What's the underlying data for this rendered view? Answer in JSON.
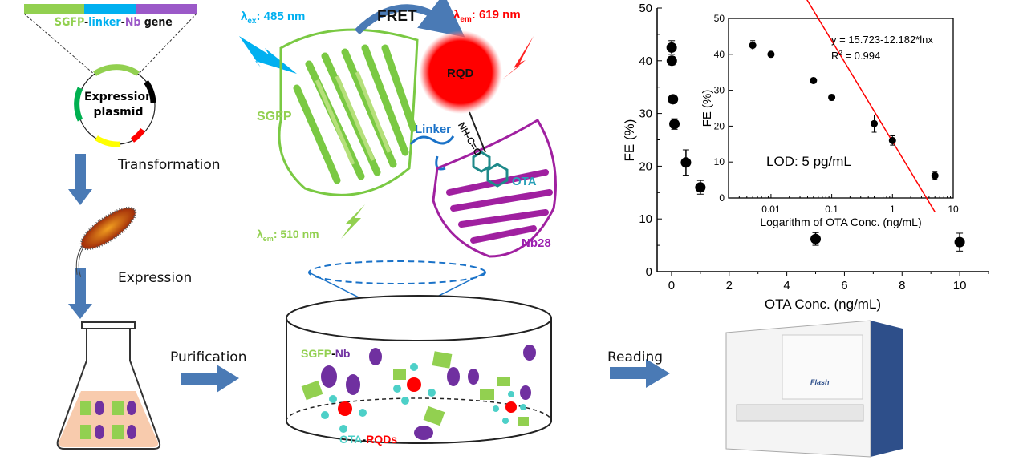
{
  "gene": {
    "part1": "SGFP",
    "sep1": "-",
    "part2": "linker",
    "sep2": "-",
    "part3": "Nb",
    "part4": " gene",
    "colors": {
      "sgfp": "#92d050",
      "linker": "#00b0f0",
      "nb": "#9b59c8"
    }
  },
  "plasmid": {
    "line1": "Expression",
    "line2": "plasmid"
  },
  "steps": {
    "transformation": "Transformation",
    "expression": "Expression",
    "purification": "Purification",
    "reading": "Reading"
  },
  "fret": {
    "label": "FRET",
    "ex_label": "λ",
    "ex_sub": "ex",
    "ex_value": ": 485 nm",
    "em_label": "λ",
    "em_sub": "em",
    "em_value_rqd": ": 619 nm",
    "em_value_sgfp": ": 510 nm",
    "rqd": "RQD",
    "sgfp": "SGFP",
    "linker": "Linker",
    "bond": "NH-C=O",
    "ota": "OTA",
    "nb": "Nb28"
  },
  "mix": {
    "sgfp": "SGFP",
    "dash": "-",
    "nb": "Nb",
    "ota": "OTA",
    "dash2": "-",
    "rqds": "RQDs"
  },
  "instrument": {
    "brand": "Flash"
  },
  "chart_data": [
    {
      "type": "scatter",
      "xlabel": "OTA Conc. (ng/mL)",
      "ylabel": "FE (%)",
      "xlim": [
        -0.5,
        11
      ],
      "ylim": [
        0,
        50
      ],
      "xticks": [
        0,
        2,
        4,
        6,
        8,
        10
      ],
      "yticks": [
        0,
        10,
        20,
        30,
        40,
        50
      ],
      "grid": false,
      "points": [
        {
          "x": 0.005,
          "y": 42.5,
          "err": 1.3
        },
        {
          "x": 0.01,
          "y": 40.0,
          "err": 0.8
        },
        {
          "x": 0.05,
          "y": 32.7,
          "err": 0.8
        },
        {
          "x": 0.1,
          "y": 28.0,
          "err": 1.0
        },
        {
          "x": 0.5,
          "y": 20.7,
          "err": 2.4
        },
        {
          "x": 1,
          "y": 16.0,
          "err": 1.3
        },
        {
          "x": 5,
          "y": 6.2,
          "err": 1.2
        },
        {
          "x": 10,
          "y": 5.6,
          "err": 1.7
        }
      ]
    },
    {
      "type": "scatter",
      "xscale": "log",
      "xlabel": "Logarithm of OTA Conc. (ng/mL)",
      "ylabel": "FE (%)",
      "xlim": [
        0.002,
        10
      ],
      "ylim": [
        0,
        50
      ],
      "xticks": [
        "0.01",
        "0.1",
        "1",
        "10"
      ],
      "yticks": [
        0,
        10,
        20,
        30,
        40,
        50
      ],
      "grid": false,
      "points": [
        {
          "x": 0.005,
          "y": 42.5,
          "err": 1.3
        },
        {
          "x": 0.01,
          "y": 40.0,
          "err": 0.6
        },
        {
          "x": 0.05,
          "y": 32.7,
          "err": 0.7
        },
        {
          "x": 0.1,
          "y": 28.0,
          "err": 0.8
        },
        {
          "x": 0.5,
          "y": 20.7,
          "err": 2.4
        },
        {
          "x": 1,
          "y": 16.0,
          "err": 1.3
        },
        {
          "x": 5,
          "y": 6.2,
          "err": 1.0
        }
      ],
      "fit": {
        "intercept": 15.723,
        "slope": -12.182,
        "color": "#ff0000"
      },
      "equation": "y = 15.723-12.182*lnx",
      "r2_label": "R",
      "r2_value": " = 0.994",
      "annotation": "LOD: 5 pg/mL"
    }
  ]
}
